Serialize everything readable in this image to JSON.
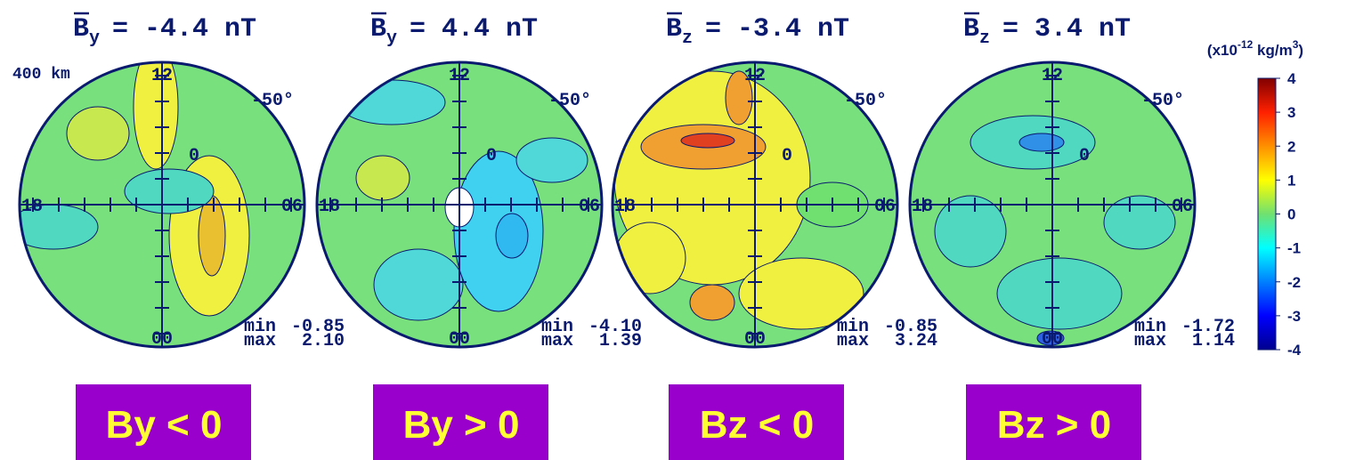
{
  "altitude": "400 km",
  "hours": {
    "top": "12",
    "left": "18",
    "right": "06",
    "bottom": "00"
  },
  "latitudes": {
    "outer": "-50°",
    "center": "0"
  },
  "panels": [
    {
      "symbol": "B",
      "component": "y",
      "value": "= -4.4 nT",
      "min_label": "min",
      "min": "-0.85",
      "max_label": "max",
      "max": "2.10",
      "caption": "By < 0"
    },
    {
      "symbol": "B",
      "component": "y",
      "value": "= 4.4 nT",
      "min_label": "min",
      "min": "-4.10",
      "max_label": "max",
      "max": "1.39",
      "caption": "By > 0"
    },
    {
      "symbol": "B",
      "component": "z",
      "value": "= -3.4 nT",
      "min_label": "min",
      "min": "-0.85",
      "max_label": "max",
      "max": "3.24",
      "caption": "Bz < 0"
    },
    {
      "symbol": "B",
      "component": "z",
      "value": "= 3.4 nT",
      "min_label": "min",
      "min": "-1.72",
      "max_label": "max",
      "max": "1.14",
      "caption": "Bz > 0"
    }
  ],
  "colorbar": {
    "unit_prefix": "(x10",
    "unit_exp": "-12",
    "unit_mid": " kg/m",
    "unit_exp2": "3",
    "unit_suffix": ")",
    "lim": [
      -4,
      4
    ],
    "ticks": [
      -4,
      -3,
      -2,
      -1,
      0,
      1,
      2,
      3,
      4
    ]
  }
}
